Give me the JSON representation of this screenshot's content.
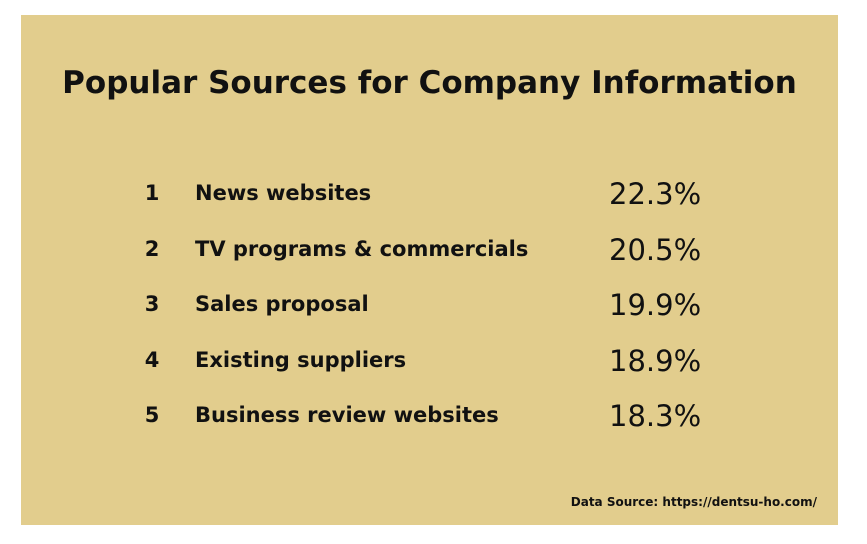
{
  "header": {
    "title": "Popular Sources for Company Information"
  },
  "table": {
    "rows": [
      [
        "1",
        "News websites",
        "22.3%"
      ],
      [
        "2",
        "TV programs & commercials",
        "20.5%"
      ],
      [
        "3",
        "Sales proposal",
        "19.9%"
      ],
      [
        "4",
        "Existing suppliers",
        "18.9%"
      ],
      [
        "5",
        "Business review websites",
        "18.3%"
      ]
    ]
  },
  "footer": {
    "source": "Data Source: https://dentsu-ho.com/"
  }
}
